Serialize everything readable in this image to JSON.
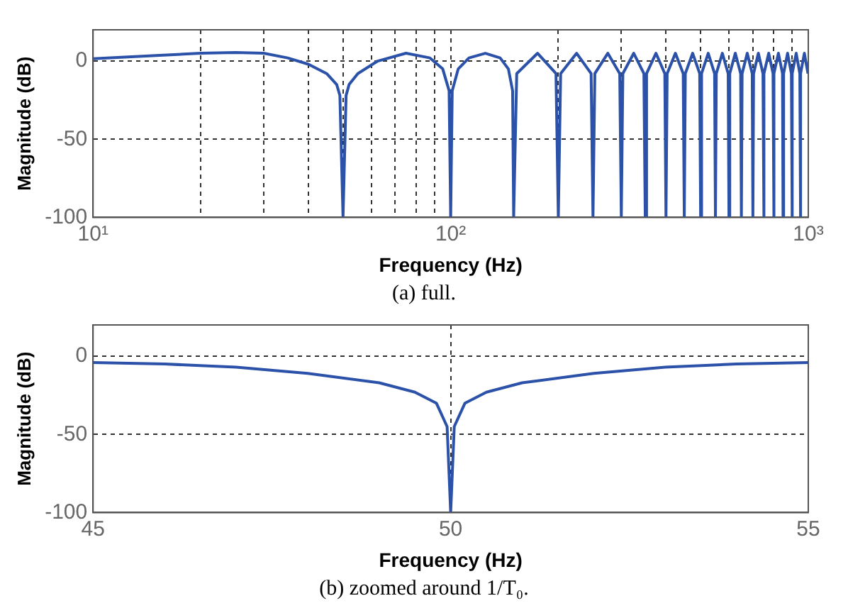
{
  "chart_data": [
    {
      "type": "line",
      "xlabel": "Frequency (Hz)",
      "ylabel": "Magnitude (dB)",
      "annotations": [
        "(a) full."
      ],
      "log": "x",
      "grid": true,
      "xlim": [
        10,
        1000
      ],
      "xticks": [
        {
          "value": 10,
          "label": "10¹"
        },
        {
          "value": 20,
          "label": null
        },
        {
          "value": 30,
          "label": null
        },
        {
          "value": 40,
          "label": null
        },
        {
          "value": 50,
          "label": null
        },
        {
          "value": 60,
          "label": null
        },
        {
          "value": 70,
          "label": null
        },
        {
          "value": 80,
          "label": null
        },
        {
          "value": 90,
          "label": null
        },
        {
          "value": 100,
          "label": "10²"
        },
        {
          "value": 200,
          "label": null
        },
        {
          "value": 300,
          "label": null
        },
        {
          "value": 400,
          "label": null
        },
        {
          "value": 500,
          "label": null
        },
        {
          "value": 600,
          "label": null
        },
        {
          "value": 700,
          "label": null
        },
        {
          "value": 800,
          "label": null
        },
        {
          "value": 900,
          "label": null
        },
        {
          "value": 1000,
          "label": "10³"
        }
      ],
      "ylim": [
        -100,
        20
      ],
      "yticks": [
        -100,
        -50,
        0
      ],
      "series": [
        {
          "color": "#2b52a8",
          "x": [
            10,
            15,
            20,
            25,
            30,
            35,
            40,
            45,
            48,
            49,
            50,
            51,
            52,
            55,
            62.5,
            75,
            87.5,
            95,
            99,
            100,
            101,
            105,
            112.5,
            125,
            137.5,
            145,
            149,
            150,
            153,
            175,
            197,
            200,
            203,
            225,
            247,
            250,
            253,
            275,
            297,
            300,
            303,
            325,
            347,
            350,
            353,
            375,
            397,
            400,
            403,
            425,
            447,
            450,
            453,
            475,
            497,
            500,
            503,
            525,
            547,
            550,
            553,
            575,
            597,
            600,
            603,
            625,
            647,
            650,
            653,
            675,
            697,
            700,
            703,
            725,
            747,
            750,
            753,
            775,
            797,
            800,
            803,
            825,
            847,
            850,
            853,
            875,
            897,
            900,
            903,
            925,
            947,
            950,
            953,
            975,
            998
          ],
          "values": [
            1.5,
            3.5,
            5,
            5.5,
            5,
            2,
            -2,
            -8,
            -15,
            -22,
            -100,
            -22,
            -15,
            -8,
            0,
            5,
            2,
            -5,
            -19,
            -100,
            -19,
            -5,
            2,
            5,
            2,
            -5,
            -19,
            -100,
            -8,
            5,
            -8,
            -100,
            -8,
            5,
            -8,
            -100,
            -8,
            5,
            -8,
            -100,
            -8,
            5,
            -8,
            -100,
            -8,
            5,
            -8,
            -100,
            -8,
            5,
            -8,
            -100,
            -8,
            5,
            -8,
            -100,
            -8,
            5,
            -8,
            -100,
            -8,
            5,
            -8,
            -100,
            -8,
            5,
            -8,
            -100,
            -8,
            5,
            -8,
            -100,
            -8,
            5,
            -8,
            -100,
            -8,
            5,
            -8,
            -100,
            -8,
            5,
            -8,
            -100,
            -8,
            5,
            -8,
            -100,
            -8,
            5,
            -8,
            -100,
            -8,
            5,
            -8
          ]
        }
      ]
    },
    {
      "type": "line",
      "xlabel": "Frequency (Hz)",
      "ylabel": "Magnitude (dB)",
      "annotations": [
        "(b) zoomed around 1/T₀."
      ],
      "grid": true,
      "xlim": [
        45,
        55
      ],
      "xticks": [
        45,
        50,
        55
      ],
      "ylim": [
        -100,
        20
      ],
      "yticks": [
        -100,
        -50,
        0
      ],
      "series": [
        {
          "color": "#2b52a8",
          "x": [
            45,
            46,
            47,
            48,
            49,
            49.5,
            49.8,
            49.95,
            50,
            50.05,
            50.2,
            50.5,
            51,
            52,
            53,
            54,
            55
          ],
          "values": [
            -4,
            -5,
            -7,
            -11,
            -17,
            -23,
            -30,
            -45,
            -100,
            -45,
            -30,
            -23,
            -17,
            -11,
            -7,
            -5,
            -4
          ]
        }
      ]
    }
  ]
}
